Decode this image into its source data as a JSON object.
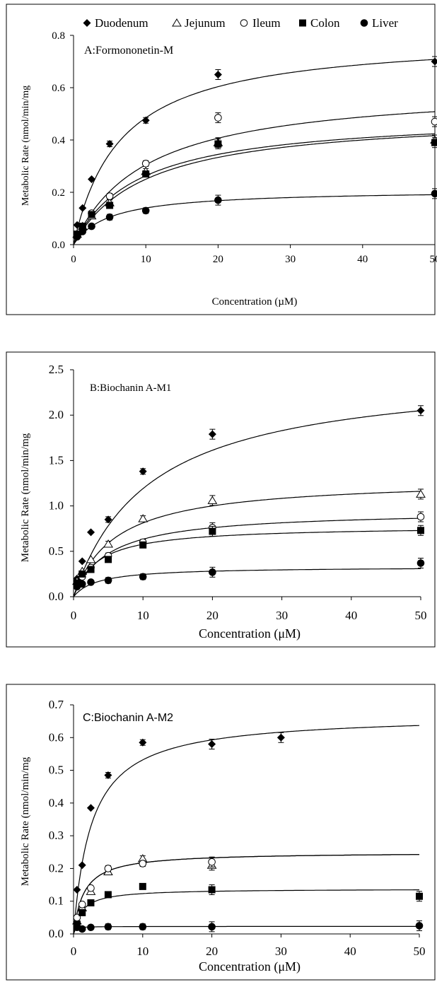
{
  "legend": {
    "items": [
      {
        "name": "Duodenum",
        "marker": "diamond"
      },
      {
        "name": "Jejunum",
        "marker": "triangle-open"
      },
      {
        "name": "Ileum",
        "marker": "circle-open"
      },
      {
        "name": "Colon",
        "marker": "square"
      },
      {
        "name": "Liver",
        "marker": "circle"
      }
    ]
  },
  "chart_data": [
    {
      "type": "scatter",
      "title": "A:Formononetin-M",
      "xlabel": "Concentration (µM)",
      "ylabel": "Metabolic Rate (nmol/min/mg",
      "xlim": [
        0,
        50
      ],
      "ylim": [
        0,
        0.8
      ],
      "xticks": [
        0,
        10,
        20,
        30,
        40,
        50
      ],
      "yticks": [
        0.0,
        0.2,
        0.4,
        0.6,
        0.8
      ],
      "ytick_labels": [
        "0.0",
        "0.2",
        "0.4",
        "0.6",
        "0.8"
      ],
      "grid": false,
      "series": [
        {
          "name": "Duodenum",
          "marker": "diamond",
          "x": [
            0.5,
            1.25,
            2.5,
            5,
            10,
            20,
            50
          ],
          "y": [
            0.075,
            0.14,
            0.25,
            0.385,
            0.475,
            0.65,
            0.7
          ],
          "fit": {
            "vmax": 0.8,
            "km": 6.5
          }
        },
        {
          "name": "Jejunum",
          "marker": "triangle-open",
          "x": [
            0.5,
            1.25,
            2.5,
            5,
            10,
            20,
            50
          ],
          "y": [
            0.04,
            0.07,
            0.11,
            0.16,
            0.28,
            0.39,
            0.4
          ],
          "fit": {
            "vmax": 0.5,
            "km": 10
          }
        },
        {
          "name": "Ileum",
          "marker": "circle-open",
          "x": [
            0.5,
            1.25,
            2.5,
            5,
            10,
            20,
            50
          ],
          "y": [
            0.04,
            0.07,
            0.12,
            0.185,
            0.31,
            0.485,
            0.47
          ],
          "fit": {
            "vmax": 0.61,
            "km": 10
          }
        },
        {
          "name": "Colon",
          "marker": "square",
          "x": [
            0.5,
            1.25,
            2.5,
            5,
            10,
            20,
            50
          ],
          "y": [
            0.04,
            0.07,
            0.115,
            0.15,
            0.27,
            0.385,
            0.39
          ],
          "fit": {
            "vmax": 0.5,
            "km": 9
          }
        },
        {
          "name": "Liver",
          "marker": "circle",
          "x": [
            0.5,
            1.25,
            2.5,
            5,
            10,
            20,
            50
          ],
          "y": [
            0.03,
            0.05,
            0.07,
            0.105,
            0.13,
            0.17,
            0.195
          ],
          "fit": {
            "vmax": 0.21,
            "km": 5
          }
        }
      ]
    },
    {
      "type": "scatter",
      "title": "B:Biochanin A-M1",
      "xlabel": "Concentration (μM)",
      "ylabel": "Metabolic Rate (nmol/min/mg",
      "xlim": [
        0,
        50
      ],
      "ylim": [
        0,
        2.5
      ],
      "xticks": [
        0,
        10,
        20,
        30,
        40,
        50
      ],
      "yticks": [
        0.0,
        0.5,
        1.0,
        1.5,
        2.0,
        2.5
      ],
      "ytick_labels": [
        "0.0",
        "0.5",
        "1.0",
        "1.5",
        "2.0",
        "2.5"
      ],
      "grid": false,
      "series": [
        {
          "name": "Duodenum",
          "marker": "diamond",
          "x": [
            0.5,
            1.25,
            2.5,
            5,
            10,
            20,
            50
          ],
          "y": [
            0.2,
            0.39,
            0.71,
            0.85,
            1.38,
            1.79,
            2.05
          ],
          "fit": {
            "vmax": 2.5,
            "km": 11
          }
        },
        {
          "name": "Jejunum",
          "marker": "triangle-open",
          "x": [
            0.5,
            1.25,
            2.5,
            5,
            10,
            20,
            50
          ],
          "y": [
            0.17,
            0.28,
            0.41,
            0.58,
            0.86,
            1.06,
            1.13
          ],
          "fit": {
            "vmax": 1.3,
            "km": 6
          }
        },
        {
          "name": "Ileum",
          "marker": "circle-open",
          "x": [
            0.5,
            1.25,
            2.5,
            5,
            10,
            20,
            50
          ],
          "y": [
            0.15,
            0.22,
            0.32,
            0.45,
            0.6,
            0.76,
            0.88
          ],
          "fit": {
            "vmax": 0.95,
            "km": 5
          }
        },
        {
          "name": "Colon",
          "marker": "square",
          "x": [
            0.5,
            1.25,
            2.5,
            5,
            10,
            20,
            50
          ],
          "y": [
            0.15,
            0.25,
            0.3,
            0.41,
            0.57,
            0.72,
            0.73
          ],
          "fit": {
            "vmax": 0.78,
            "km": 3.5
          }
        },
        {
          "name": "Liver",
          "marker": "circle",
          "x": [
            0.5,
            1.25,
            2.5,
            5,
            10,
            20,
            50
          ],
          "y": [
            0.11,
            0.14,
            0.16,
            0.18,
            0.22,
            0.27,
            0.37
          ],
          "fit": {
            "vmax": 0.33,
            "km": 3.5
          }
        }
      ]
    },
    {
      "type": "scatter",
      "title": "C:Biochanin A-M2",
      "xlabel": "Concentration (μM)",
      "ylabel": "Metabolic Rate (nmol/min/mg",
      "xlim": [
        0,
        50
      ],
      "ylim": [
        0,
        0.7
      ],
      "xticks": [
        0,
        10,
        20,
        30,
        40,
        50
      ],
      "yticks": [
        0.0,
        0.1,
        0.2,
        0.3,
        0.4,
        0.5,
        0.6,
        0.7
      ],
      "ytick_labels": [
        "0.0",
        "0.1",
        "0.2",
        "0.3",
        "0.4",
        "0.5",
        "0.6",
        "0.7"
      ],
      "grid": false,
      "series": [
        {
          "name": "Duodenum",
          "marker": "diamond",
          "x": [
            0.5,
            1.25,
            2.5,
            5,
            10,
            20,
            30
          ],
          "y": [
            0.135,
            0.21,
            0.385,
            0.485,
            0.585,
            0.58,
            0.6
          ],
          "fit": {
            "vmax": 0.67,
            "km": 2.6
          }
        },
        {
          "name": "Jejunum",
          "marker": "triangle-open",
          "x": [
            0.5,
            1.25,
            2.5,
            5,
            10,
            20
          ],
          "y": [
            0.04,
            0.08,
            0.13,
            0.19,
            0.23,
            0.21
          ],
          "fit": {
            "vmax": 0.25,
            "km": 1.5
          }
        },
        {
          "name": "Ileum",
          "marker": "circle-open",
          "x": [
            0.5,
            1.25,
            2.5,
            5,
            10,
            20
          ],
          "y": [
            0.05,
            0.09,
            0.14,
            0.2,
            0.215,
            0.22
          ],
          "fit": {
            "vmax": 0.25,
            "km": 1.5
          }
        },
        {
          "name": "Colon",
          "marker": "square",
          "x": [
            0.5,
            1.25,
            2.5,
            5,
            10,
            20,
            50
          ],
          "y": [
            0.03,
            0.065,
            0.095,
            0.12,
            0.145,
            0.135,
            0.115
          ],
          "fit": {
            "vmax": 0.138,
            "km": 1.2
          }
        },
        {
          "name": "Liver",
          "marker": "circle",
          "x": [
            0.5,
            1.25,
            2.5,
            5,
            10,
            20,
            50
          ],
          "y": [
            0.02,
            0.015,
            0.02,
            0.022,
            0.022,
            0.022,
            0.025
          ],
          "fit": {
            "vmax": 0.023,
            "km": 0.2
          }
        }
      ]
    }
  ]
}
